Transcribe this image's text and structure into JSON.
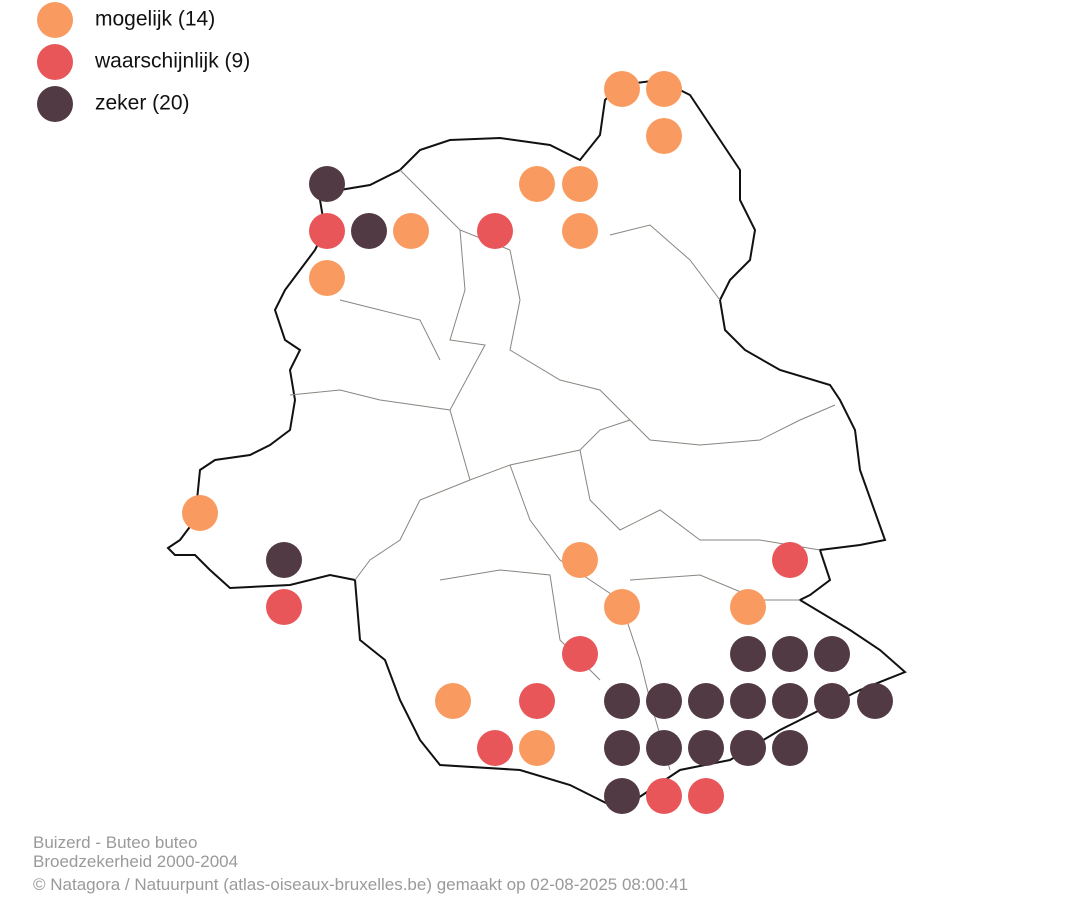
{
  "legend": [
    {
      "label": "mogelijk (14)",
      "color": "#f99b61"
    },
    {
      "label": "waarschijnlijk (9)",
      "color": "#e85659"
    },
    {
      "label": "zeker (20)",
      "color": "#523a44"
    }
  ],
  "footer": {
    "lines": [
      "Buizerd - Buteo buteo",
      "Broedzekerheid 2000-2004",
      "© Natagora / Natuurpunt (atlas-oiseaux-bruxelles.be) gemaakt op 02-08-2025 08:00:41"
    ]
  }
}
